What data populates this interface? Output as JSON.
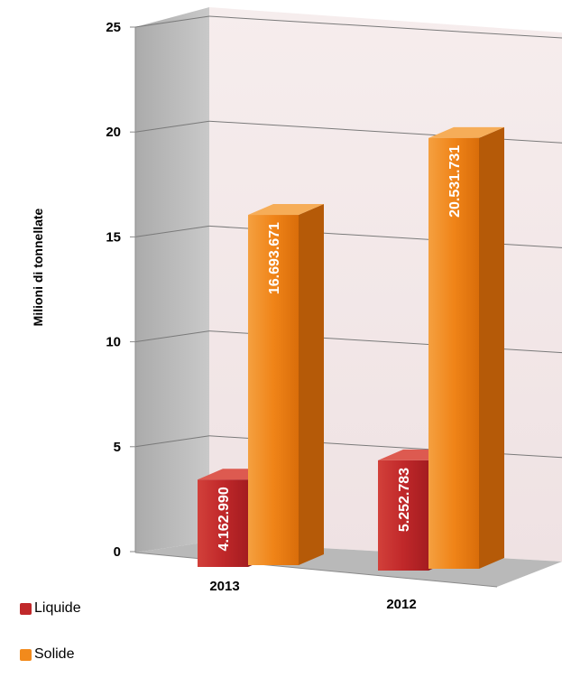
{
  "chart_data": {
    "type": "bar",
    "categories": [
      "2013",
      "2012"
    ],
    "series": [
      {
        "name": "Liquide",
        "values": [
          4.16299,
          5.252783
        ],
        "labels": [
          "4.162.990",
          "5.252.783"
        ],
        "color": "#c0282a"
      },
      {
        "name": "Solide",
        "values": [
          16.693671,
          20.531731
        ],
        "labels": [
          "16.693.671",
          "20.531.731"
        ],
        "color": "#f28a1c"
      }
    ],
    "ylabel": "Milioni di tonnellate",
    "ylim": [
      0,
      25
    ],
    "yticks": [
      "0",
      "5",
      "10",
      "15",
      "20",
      "25"
    ],
    "grid": true,
    "legend": "bottom-left",
    "style": "3d-column"
  }
}
